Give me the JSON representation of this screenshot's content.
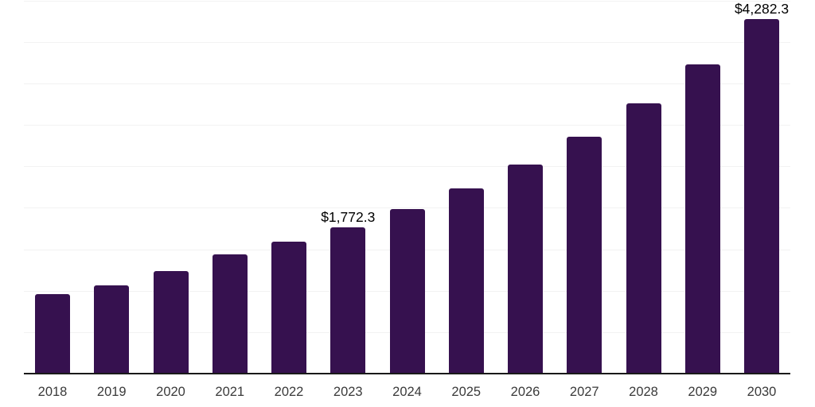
{
  "chart": {
    "colors": {
      "background": "#ffffff",
      "bar": "#36114F",
      "gridline": "#f2f2f2",
      "axis_line": "#1a1a1a",
      "tick_label": "#3a3a3a",
      "data_label": "#000000"
    }
  },
  "chart_data": {
    "type": "bar",
    "title": "",
    "xlabel": "",
    "ylabel": "",
    "categories": [
      "2018",
      "2019",
      "2020",
      "2021",
      "2022",
      "2023",
      "2024",
      "2025",
      "2026",
      "2027",
      "2028",
      "2029",
      "2030"
    ],
    "values": [
      968,
      1070,
      1242,
      1452,
      1605,
      1772.3,
      1994,
      2239,
      2535,
      2863,
      3268,
      3736,
      4282.3
    ],
    "data_labels": [
      {
        "index": 5,
        "text": "$1,772.3"
      },
      {
        "index": 12,
        "text": "$4,282.3"
      }
    ],
    "ylim": [
      0,
      4500
    ],
    "gridline_interval": 500,
    "grid": "horizontal-only",
    "legend": "none",
    "y_axis_tick_labels": "none"
  }
}
